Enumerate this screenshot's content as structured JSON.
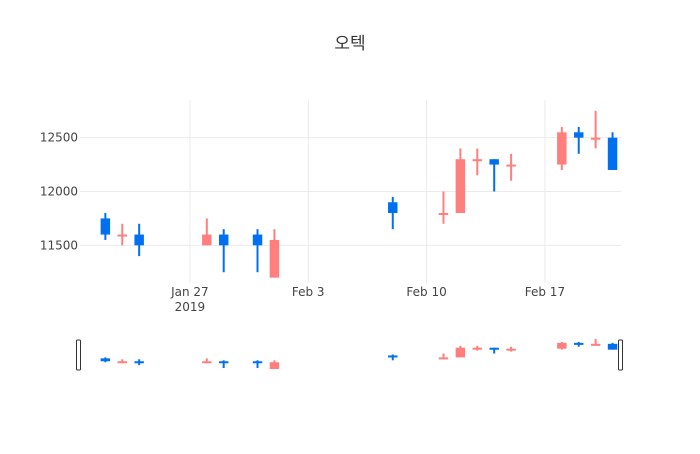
{
  "chart_data": {
    "type": "candlestick",
    "title": "오텍",
    "xlabel": "",
    "ylabel": "",
    "x_ticks": [
      {
        "date": "2019-01-27",
        "label": "Jan 27",
        "sublabel": "2019"
      },
      {
        "date": "2019-02-03",
        "label": "Feb 3",
        "sublabel": ""
      },
      {
        "date": "2019-02-10",
        "label": "Feb 10",
        "sublabel": ""
      },
      {
        "date": "2019-02-17",
        "label": "Feb 17",
        "sublabel": ""
      }
    ],
    "y_ticks": [
      11500,
      12000,
      12500
    ],
    "xlim": [
      "2019-01-21",
      "2019-02-21"
    ],
    "ylim": [
      11150,
      12850
    ],
    "grid": true,
    "colors": {
      "increasing": "#FF7F7F",
      "decreasing": "#0070F0",
      "grid": "#EBEBEB",
      "text": "#444444",
      "title": "#333333"
    },
    "rangeslider": true,
    "candles": [
      {
        "date": "2019-01-22",
        "open": 11750,
        "high": 11800,
        "low": 11550,
        "close": 11600
      },
      {
        "date": "2019-01-23",
        "open": 11600,
        "high": 11700,
        "low": 11500,
        "close": 11600
      },
      {
        "date": "2019-01-24",
        "open": 11600,
        "high": 11700,
        "low": 11400,
        "close": 11500
      },
      {
        "date": "2019-01-28",
        "open": 11500,
        "high": 11750,
        "low": 11500,
        "close": 11600
      },
      {
        "date": "2019-01-29",
        "open": 11600,
        "high": 11650,
        "low": 11250,
        "close": 11500
      },
      {
        "date": "2019-01-31",
        "open": 11600,
        "high": 11650,
        "low": 11250,
        "close": 11500
      },
      {
        "date": "2019-02-01",
        "open": 11200,
        "high": 11650,
        "low": 11200,
        "close": 11550
      },
      {
        "date": "2019-02-08",
        "open": 11900,
        "high": 11950,
        "low": 11650,
        "close": 11800
      },
      {
        "date": "2019-02-11",
        "open": 11800,
        "high": 12000,
        "low": 11700,
        "close": 11800
      },
      {
        "date": "2019-02-12",
        "open": 11800,
        "high": 12400,
        "low": 11800,
        "close": 12300
      },
      {
        "date": "2019-02-13",
        "open": 12300,
        "high": 12400,
        "low": 12150,
        "close": 12300
      },
      {
        "date": "2019-02-14",
        "open": 12300,
        "high": 12300,
        "low": 12000,
        "close": 12250
      },
      {
        "date": "2019-02-15",
        "open": 12250,
        "high": 12350,
        "low": 12100,
        "close": 12250
      },
      {
        "date": "2019-02-18",
        "open": 12250,
        "high": 12600,
        "low": 12200,
        "close": 12550
      },
      {
        "date": "2019-02-19",
        "open": 12550,
        "high": 12600,
        "low": 12350,
        "close": 12500
      },
      {
        "date": "2019-02-20",
        "open": 12500,
        "high": 12750,
        "low": 12400,
        "close": 12500
      },
      {
        "date": "2019-02-21",
        "open": 12500,
        "high": 12550,
        "low": 12200,
        "close": 12200
      }
    ]
  }
}
